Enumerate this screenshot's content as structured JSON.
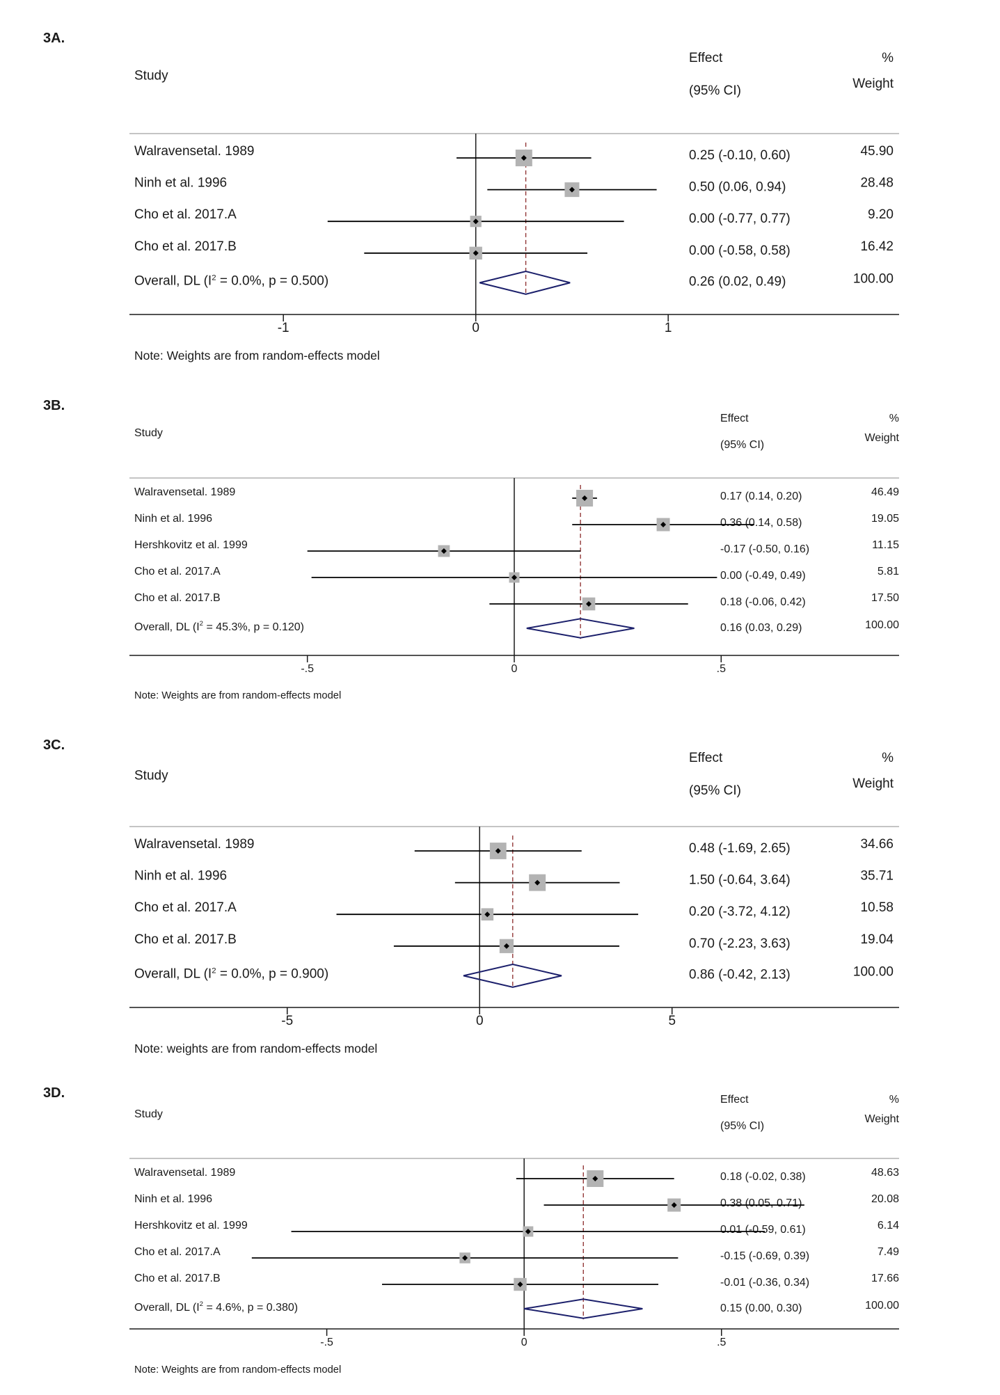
{
  "figure": {
    "panels": [
      {
        "label": "3A.",
        "header": {
          "study": "Study",
          "effect": "Effect",
          "ci": "(95% CI)",
          "pct": "%",
          "weight": "Weight"
        },
        "note": "Note: Weights are from random-effects model",
        "overall_label": "Overall, DL (I",
        "overall_sup": "2",
        "overall_rest": " = 0.0%, p = 0.500)"
      },
      {
        "label": "3B.",
        "header": {
          "study": "Study",
          "effect": "Effect",
          "ci": "(95% CI)",
          "pct": "%",
          "weight": "Weight"
        },
        "note": "Note: Weights are from random-effects model",
        "overall_label": "Overall, DL (I",
        "overall_sup": "2",
        "overall_rest": " = 45.3%, p = 0.120)"
      },
      {
        "label": "3C.",
        "header": {
          "study": "Study",
          "effect": "Effect",
          "ci": "(95% CI)",
          "pct": "%",
          "weight": "Weight"
        },
        "note": "Note: weights are from random-effects model",
        "overall_label": "Overall, DL (I",
        "overall_sup": "2",
        "overall_rest": " = 0.0%, p = 0.900)"
      },
      {
        "label": "3D.",
        "header": {
          "study": "Study",
          "effect": "Effect",
          "ci": "(95% CI)",
          "pct": "%",
          "weight": "Weight"
        },
        "note": "Note: Weights are from random-effects model",
        "overall_label": "Overall, DL (I",
        "overall_sup": "2",
        "overall_rest": " = 4.6%, p = 0.380)"
      }
    ]
  },
  "colors": {
    "marker_box": "#b3b3b3",
    "marker": "#000000",
    "diamond": "#1b1f6b",
    "ref_line": "#8b2a2a",
    "axis": "#1a1a1a"
  },
  "chart_data": [
    {
      "type": "forest",
      "xlim": [
        -1.8,
        2.2
      ],
      "xticks": [
        -1,
        0,
        1
      ],
      "xtick_labels": [
        "-1",
        "0",
        "1"
      ],
      "studies": [
        {
          "name": "Walravensetal. 1989",
          "effect": 0.25,
          "lo": -0.1,
          "hi": 0.6,
          "ci_text": "0.25 (-0.10, 0.60)",
          "weight": 45.9,
          "weight_text": "45.90"
        },
        {
          "name": "Ninh et al. 1996",
          "effect": 0.5,
          "lo": 0.06,
          "hi": 0.94,
          "ci_text": "0.50 (0.06, 0.94)",
          "weight": 28.48,
          "weight_text": "28.48"
        },
        {
          "name": "Cho et al. 2017.A",
          "effect": 0.0,
          "lo": -0.77,
          "hi": 0.77,
          "ci_text": "0.00 (-0.77, 0.77)",
          "weight": 9.2,
          "weight_text": "9.20"
        },
        {
          "name": "Cho et al. 2017.B",
          "effect": 0.0,
          "lo": -0.58,
          "hi": 0.58,
          "ci_text": "0.00 (-0.58, 0.58)",
          "weight": 16.42,
          "weight_text": "16.42"
        }
      ],
      "overall": {
        "effect": 0.26,
        "lo": 0.02,
        "hi": 0.49,
        "ci_text": "0.26 (0.02, 0.49)",
        "weight_text": "100.00"
      }
    },
    {
      "type": "forest",
      "xlim": [
        -0.93,
        0.93
      ],
      "xticks": [
        -0.5,
        0,
        0.5
      ],
      "xtick_labels": [
        "-.5",
        "0",
        ".5"
      ],
      "studies": [
        {
          "name": "Walravensetal. 1989",
          "effect": 0.17,
          "lo": 0.14,
          "hi": 0.2,
          "ci_text": "0.17 (0.14, 0.20)",
          "weight": 46.49,
          "weight_text": "46.49"
        },
        {
          "name": "Ninh et al. 1996",
          "effect": 0.36,
          "lo": 0.14,
          "hi": 0.58,
          "ci_text": "0.36 (0.14, 0.58)",
          "weight": 19.05,
          "weight_text": "19.05"
        },
        {
          "name": "Hershkovitz et al. 1999",
          "effect": -0.17,
          "lo": -0.5,
          "hi": 0.16,
          "ci_text": "-0.17 (-0.50, 0.16)",
          "weight": 11.15,
          "weight_text": "11.15"
        },
        {
          "name": "Cho et al. 2017.A",
          "effect": 0.0,
          "lo": -0.49,
          "hi": 0.49,
          "ci_text": "0.00 (-0.49, 0.49)",
          "weight": 5.81,
          "weight_text": "5.81"
        },
        {
          "name": "Cho et al. 2017.B",
          "effect": 0.18,
          "lo": -0.06,
          "hi": 0.42,
          "ci_text": "0.18 (-0.06, 0.42)",
          "weight": 17.5,
          "weight_text": "17.50"
        }
      ],
      "overall": {
        "effect": 0.16,
        "lo": 0.03,
        "hi": 0.29,
        "ci_text": "0.16 (0.03, 0.29)",
        "weight_text": "100.00"
      }
    },
    {
      "type": "forest",
      "xlim": [
        -9.1,
        10.9
      ],
      "xticks": [
        -5,
        0,
        5
      ],
      "xtick_labels": [
        "-5",
        "0",
        "5"
      ],
      "studies": [
        {
          "name": "Walravensetal. 1989",
          "effect": 0.48,
          "lo": -1.69,
          "hi": 2.65,
          "ci_text": "0.48 (-1.69, 2.65)",
          "weight": 34.66,
          "weight_text": "34.66"
        },
        {
          "name": "Ninh et al. 1996",
          "effect": 1.5,
          "lo": -0.64,
          "hi": 3.64,
          "ci_text": "1.50 (-0.64, 3.64)",
          "weight": 35.71,
          "weight_text": "35.71"
        },
        {
          "name": "Cho et al. 2017.A",
          "effect": 0.2,
          "lo": -3.72,
          "hi": 4.12,
          "ci_text": "0.20 (-3.72, 4.12)",
          "weight": 10.58,
          "weight_text": "10.58"
        },
        {
          "name": "Cho et al. 2017.B",
          "effect": 0.7,
          "lo": -2.23,
          "hi": 3.63,
          "ci_text": "0.70 (-2.23, 3.63)",
          "weight": 19.04,
          "weight_text": "19.04"
        }
      ],
      "overall": {
        "effect": 0.86,
        "lo": -0.42,
        "hi": 2.13,
        "ci_text": "0.86 (-0.42, 2.13)",
        "weight_text": "100.00"
      }
    },
    {
      "type": "forest",
      "xlim": [
        -1.0,
        0.95
      ],
      "xticks": [
        -0.5,
        0,
        0.5
      ],
      "xtick_labels": [
        "-.5",
        "0",
        ".5"
      ],
      "studies": [
        {
          "name": "Walravensetal. 1989",
          "effect": 0.18,
          "lo": -0.02,
          "hi": 0.38,
          "ci_text": "0.18 (-0.02, 0.38)",
          "weight": 48.63,
          "weight_text": "48.63"
        },
        {
          "name": "Ninh et al. 1996",
          "effect": 0.38,
          "lo": 0.05,
          "hi": 0.71,
          "ci_text": "0.38 (0.05, 0.71)",
          "weight": 20.08,
          "weight_text": "20.08"
        },
        {
          "name": "Hershkovitz et al. 1999",
          "effect": 0.01,
          "lo": -0.59,
          "hi": 0.61,
          "ci_text": "0.01 (-0.59, 0.61)",
          "weight": 6.14,
          "weight_text": "6.14"
        },
        {
          "name": "Cho et al. 2017.A",
          "effect": -0.15,
          "lo": -0.69,
          "hi": 0.39,
          "ci_text": "-0.15 (-0.69, 0.39)",
          "weight": 7.49,
          "weight_text": "7.49"
        },
        {
          "name": "Cho et al. 2017.B",
          "effect": -0.01,
          "lo": -0.36,
          "hi": 0.34,
          "ci_text": "-0.01 (-0.36, 0.34)",
          "weight": 17.66,
          "weight_text": "17.66"
        }
      ],
      "overall": {
        "effect": 0.15,
        "lo": 0.0,
        "hi": 0.3,
        "ci_text": "0.15 (0.00, 0.30)",
        "weight_text": "100.00"
      }
    }
  ]
}
